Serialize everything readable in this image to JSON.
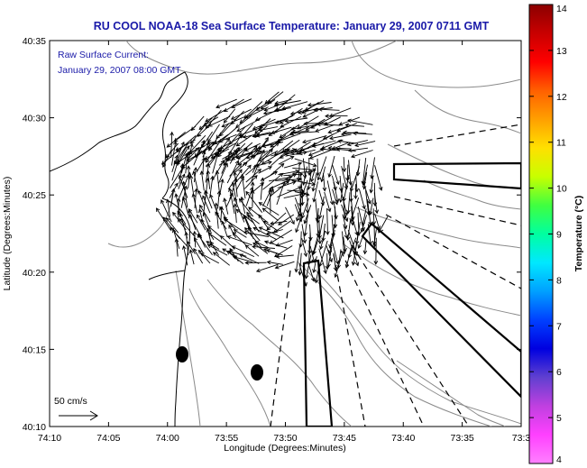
{
  "title": "RU COOL  NOAA-18  Sea Surface Temperature:  January 29, 2007 0711 GMT",
  "annotation": {
    "line1": "Raw Surface Current:",
    "line2": "January 29, 2007 08:00 GMT"
  },
  "scale_label": "50 cm/s",
  "axes": {
    "xlabel": "Longitude (Degrees:Minutes)",
    "ylabel": "Latitude (Degrees:Minutes)",
    "x_ticks": [
      "74:10",
      "74:05",
      "74:00",
      "73:55",
      "73:50",
      "73:45",
      "73:40",
      "73:35",
      "73:3"
    ],
    "y_ticks": [
      "40:35",
      "40:30",
      "40:25",
      "40:20",
      "40:15",
      "40:10"
    ]
  },
  "colorbar": {
    "label": "Temperature (°C)",
    "ticks": [
      "14",
      "13",
      "12",
      "11",
      "10",
      "9",
      "8",
      "7",
      "6",
      "5",
      "4"
    ],
    "colors": [
      "#8b0000",
      "#c80000",
      "#ff0000",
      "#ff6000",
      "#ffa000",
      "#ffe000",
      "#c8ff00",
      "#40ff40",
      "#00ffa0",
      "#00e8ff",
      "#00a0ff",
      "#0040ff",
      "#0000e0",
      "#6040d0",
      "#c040e0",
      "#ff40ff",
      "#ff80ff"
    ]
  },
  "colors": {
    "title": "#1a1aa8",
    "contour": "#8a8a8a",
    "coast": "#000000"
  },
  "chart_data": {
    "type": "map",
    "x_range": [
      "74:10",
      "73:30"
    ],
    "y_range": [
      "40:10",
      "40:35"
    ],
    "features": [
      "coastline",
      "bathymetry-contours",
      "surface-current-vectors",
      "shipping-lane-boundaries",
      "ship-markers"
    ]
  }
}
